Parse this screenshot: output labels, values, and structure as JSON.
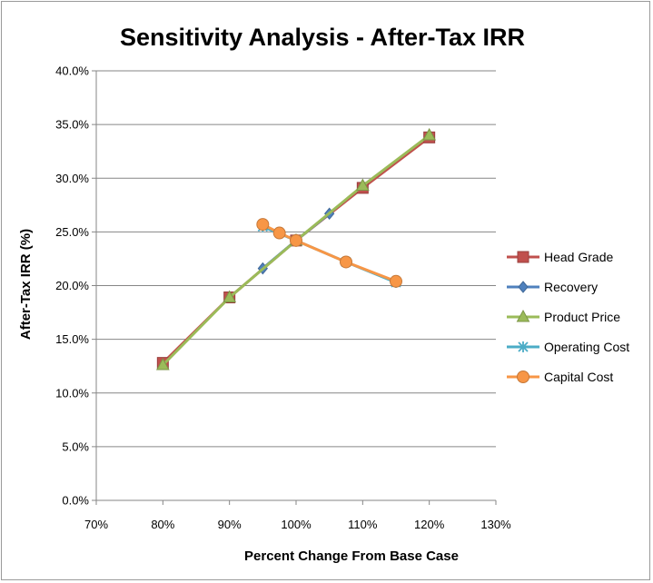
{
  "chart_data": {
    "type": "line",
    "title": "Sensitivity Analysis - After-Tax IRR",
    "xlabel": "Percent Change From Base Case",
    "ylabel": "After-Tax IRR (%)",
    "xlim": [
      70,
      130
    ],
    "ylim": [
      0,
      40
    ],
    "x_ticks": [
      "70%",
      "80%",
      "90%",
      "100%",
      "110%",
      "120%",
      "130%"
    ],
    "y_ticks": [
      "0.0%",
      "5.0%",
      "10.0%",
      "15.0%",
      "20.0%",
      "25.0%",
      "30.0%",
      "35.0%",
      "40.0%"
    ],
    "grid": "horizontal",
    "legend_position": "right",
    "series": [
      {
        "name": "Head Grade",
        "color": "#c0504d",
        "marker": "square",
        "x": [
          80,
          90,
          100,
          110,
          120
        ],
        "y": [
          12.8,
          18.9,
          24.2,
          29.1,
          33.8
        ]
      },
      {
        "name": "Recovery",
        "color": "#4f81bd",
        "marker": "diamond",
        "x": [
          95,
          100,
          105
        ],
        "y": [
          21.6,
          24.2,
          26.7
        ]
      },
      {
        "name": "Product Price",
        "color": "#9bbb59",
        "marker": "triangle",
        "x": [
          80,
          90,
          100,
          110,
          120
        ],
        "y": [
          12.6,
          18.9,
          24.2,
          29.3,
          34.0
        ]
      },
      {
        "name": "Operating Cost",
        "color": "#4bacc6",
        "marker": "star",
        "x": [
          95,
          100,
          107.5,
          115
        ],
        "y": [
          25.5,
          24.2,
          22.2,
          20.3
        ]
      },
      {
        "name": "Capital Cost",
        "color": "#f79646",
        "marker": "circle",
        "x": [
          95,
          97.5,
          100,
          107.5,
          115
        ],
        "y": [
          25.7,
          24.9,
          24.2,
          22.2,
          20.4
        ]
      }
    ]
  }
}
